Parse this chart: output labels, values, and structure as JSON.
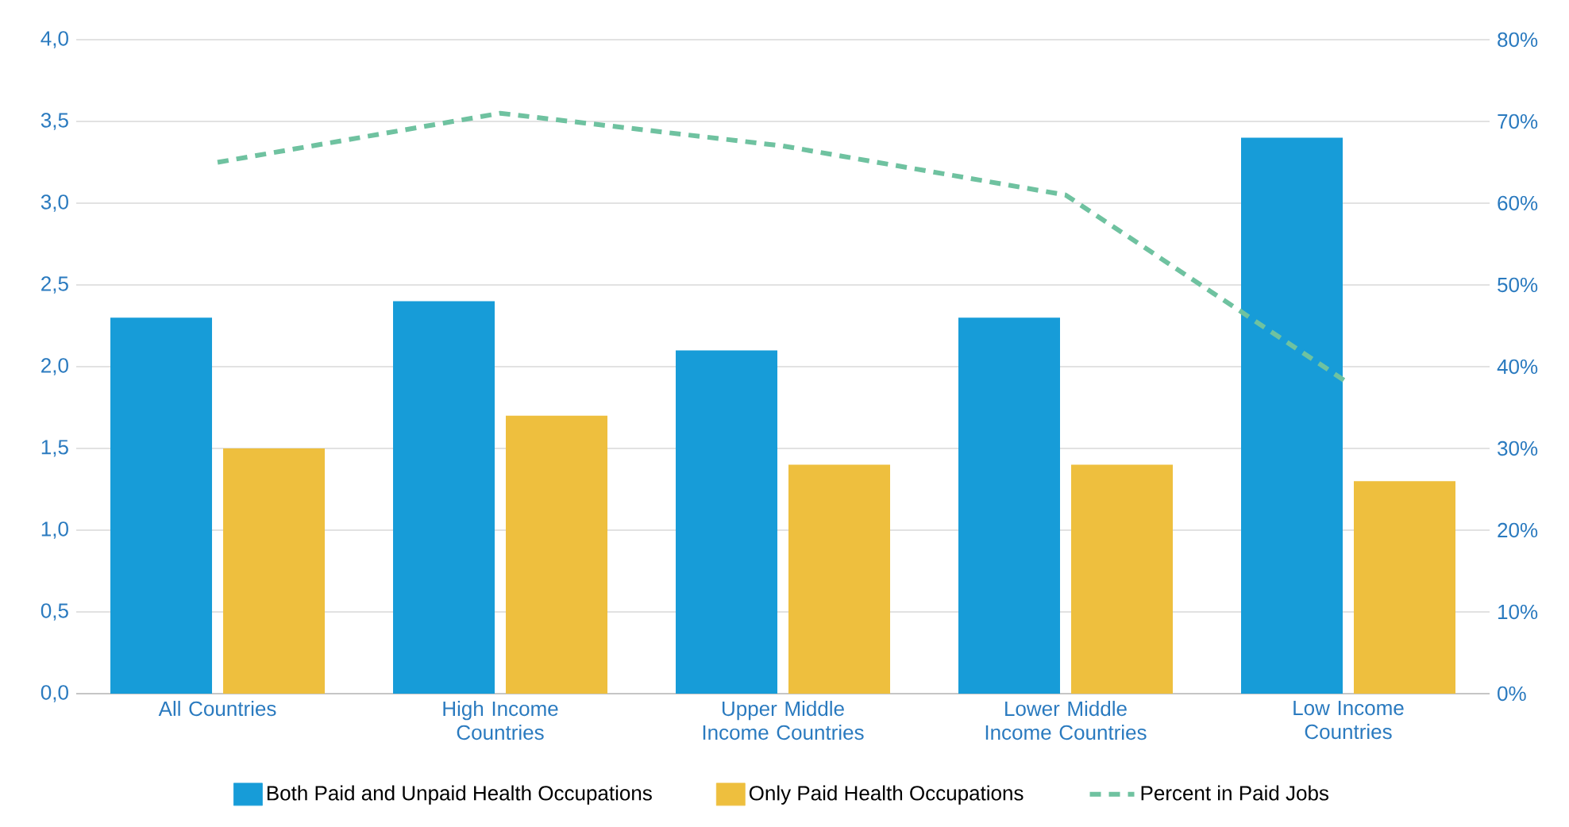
{
  "chart_data": {
    "type": "bar",
    "categories": [
      "All Countries",
      "High Income Countries",
      "Upper Middle Income Countries",
      "Lower Middle Income Countries",
      "Low Income Countries"
    ],
    "series": [
      {
        "name": "Both Paid and Unpaid Health Occupations",
        "color": "#179cd8",
        "values": [
          2.3,
          2.4,
          2.1,
          2.3,
          3.4
        ]
      },
      {
        "name": "Only Paid Health Occupations",
        "color": "#eebf3e",
        "values": [
          1.5,
          1.7,
          1.4,
          1.4,
          1.3
        ]
      },
      {
        "name": "Percent in Paid Jobs",
        "type": "line",
        "axis": "y2",
        "line_style": "dashed",
        "color": "#6fc2a0",
        "values": [
          65,
          71,
          67,
          61,
          38
        ]
      }
    ],
    "ylim": [
      0,
      4
    ],
    "yticks": [
      {
        "value": 0,
        "label": "0,0"
      },
      {
        "value": 0.5,
        "label": "0,5"
      },
      {
        "value": 1,
        "label": "1,0"
      },
      {
        "value": 1.5,
        "label": "1,5"
      },
      {
        "value": 2,
        "label": "2,0"
      },
      {
        "value": 2.5,
        "label": "2,5"
      },
      {
        "value": 3,
        "label": "3,0"
      },
      {
        "value": 3.5,
        "label": "3,5"
      },
      {
        "value": 4,
        "label": "4,0"
      }
    ],
    "y2lim": [
      0,
      80
    ],
    "y2ticks": [
      {
        "value": 0,
        "label": "0%"
      },
      {
        "value": 10,
        "label": "10%"
      },
      {
        "value": 20,
        "label": "20%"
      },
      {
        "value": 30,
        "label": "30%"
      },
      {
        "value": 40,
        "label": "40%"
      },
      {
        "value": 50,
        "label": "50%"
      },
      {
        "value": 60,
        "label": "60%"
      },
      {
        "value": 70,
        "label": "70%"
      },
      {
        "value": 80,
        "label": "80%"
      }
    ],
    "grid": "y",
    "legend": "bottom"
  }
}
